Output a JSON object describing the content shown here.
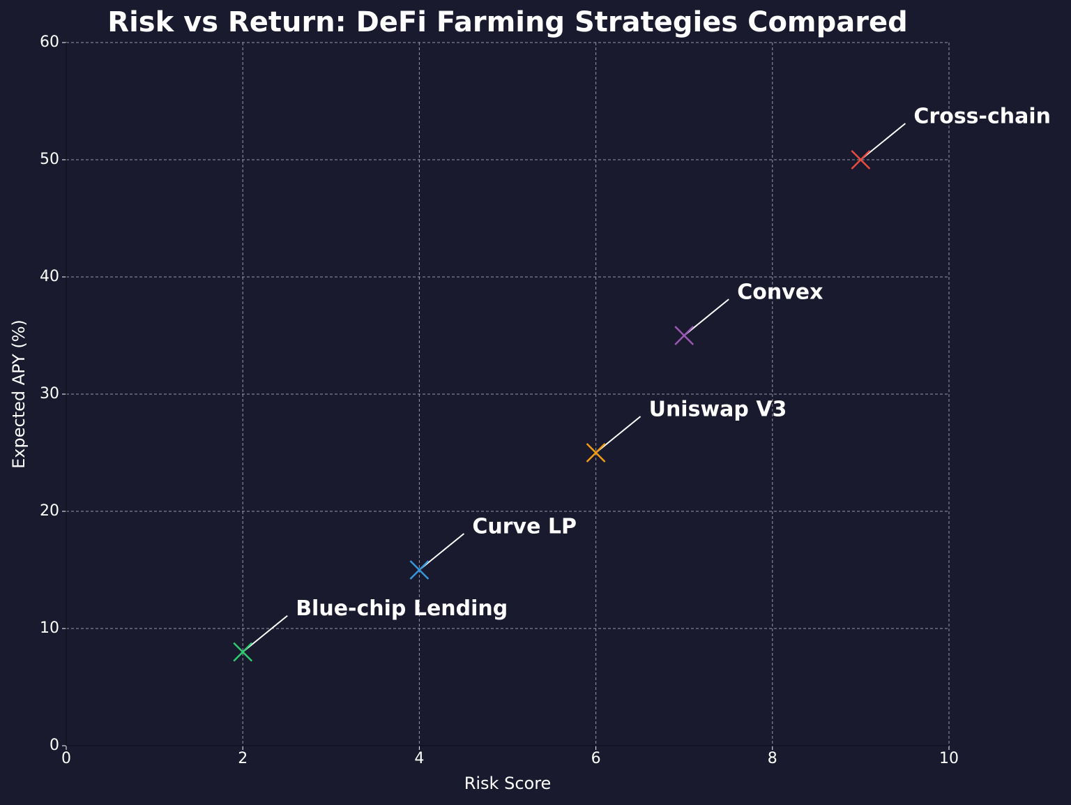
{
  "chart_data": {
    "type": "scatter",
    "title": "Risk vs Return: DeFi Farming Strategies Compared",
    "x_label": "Risk Score",
    "y_label": "Expected APY (%)",
    "x": [
      2,
      4,
      6,
      7,
      9
    ],
    "values": [
      8,
      15,
      25,
      35,
      50
    ],
    "point_labels": [
      "Blue-chip Lending",
      "Curve LP",
      "Uniswap V3",
      "Convex",
      "Cross-chain"
    ],
    "colors": [
      "#2ecc71",
      "#3498db",
      "#f39c12",
      "#9b59b6",
      "#e74c3c"
    ],
    "xlim": [
      0,
      10
    ],
    "xticks": [
      0,
      2,
      4,
      6,
      8,
      10
    ],
    "ylim": [
      0,
      60
    ],
    "yticks": [
      0,
      10,
      20,
      30,
      40,
      50,
      60
    ],
    "grid": true
  }
}
